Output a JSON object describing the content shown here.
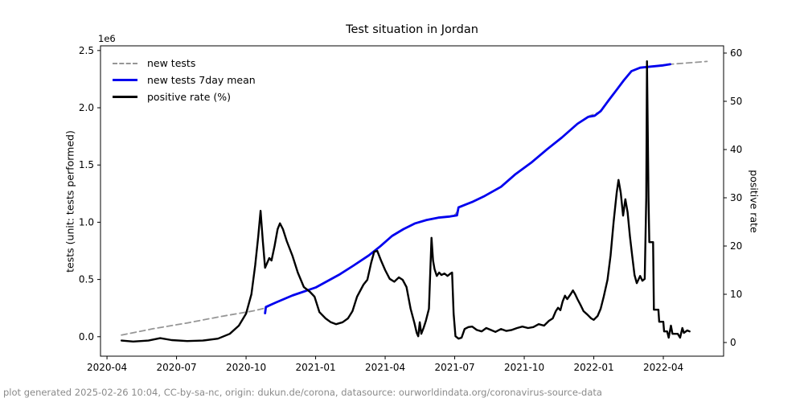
{
  "title": "Test situation in Jordan",
  "footer": "plot generated 2025-02-26 10:04, CC-by-sa-nc, origin: dukun.de/corona, datasource: ourworldindata.org/coronavirus-source-data",
  "colors": {
    "new_tests": "#969696",
    "new_tests_7day": "#0000ee",
    "positive_rate": "#000000",
    "frame": "#000000",
    "footer_text": "#8a8a8a"
  },
  "chart_data": {
    "type": "line",
    "title": "Test situation in Jordan",
    "xlabel": "",
    "ylabel_left": "tests (unit: tests performed)",
    "ylabel_right": "positive rate",
    "offset_label": "1e6",
    "grid": false,
    "legend_position": "upper left",
    "x_ticks": [
      {
        "label": "2020-04",
        "month": 0
      },
      {
        "label": "2020-07",
        "month": 3
      },
      {
        "label": "2020-10",
        "month": 6
      },
      {
        "label": "2021-01",
        "month": 9
      },
      {
        "label": "2021-04",
        "month": 12
      },
      {
        "label": "2021-07",
        "month": 15
      },
      {
        "label": "2021-10",
        "month": 18
      },
      {
        "label": "2022-01",
        "month": 21
      },
      {
        "label": "2022-04",
        "month": 24
      }
    ],
    "x_range_months": [
      -0.28,
      26.6
    ],
    "left_axis": {
      "ticks": [
        0.0,
        0.5,
        1.0,
        1.5,
        2.0,
        2.5
      ],
      "range": [
        -0.17,
        2.541
      ],
      "unit": "1e6 tests"
    },
    "right_axis": {
      "ticks": [
        0,
        10,
        20,
        30,
        40,
        50,
        60
      ],
      "range": [
        -2.83,
        61.5
      ],
      "unit": "%"
    },
    "series": [
      {
        "name": "new tests",
        "axis": "left",
        "style": "dashed",
        "color": "#969696",
        "width": 1.8,
        "points": [
          [
            "2020-04-20",
            0.015
          ],
          [
            "2020-06-01",
            0.07
          ],
          [
            "2020-07-15",
            0.12
          ],
          [
            "2020-09-01",
            0.18
          ],
          [
            "2020-10-10",
            0.225
          ],
          [
            "2020-10-26",
            0.25
          ],
          [
            "2020-11-10",
            0.3
          ],
          [
            "2020-12-01",
            0.36
          ],
          [
            "2021-01-01",
            0.43
          ],
          [
            "2021-02-01",
            0.54
          ],
          [
            "2021-02-20",
            0.62
          ],
          [
            "2021-03-10",
            0.71
          ],
          [
            "2021-03-25",
            0.79
          ],
          [
            "2021-04-10",
            0.88
          ],
          [
            "2021-04-25",
            0.94
          ],
          [
            "2021-05-10",
            0.99
          ],
          [
            "2021-05-25",
            1.02
          ],
          [
            "2021-06-10",
            1.04
          ],
          [
            "2021-06-25",
            1.05
          ],
          [
            "2021-07-02",
            1.07
          ],
          [
            "2021-07-08",
            1.13
          ],
          [
            "2021-07-25",
            1.18
          ],
          [
            "2021-08-10",
            1.23
          ],
          [
            "2021-09-01",
            1.31
          ],
          [
            "2021-09-20",
            1.42
          ],
          [
            "2021-10-10",
            1.52
          ],
          [
            "2021-11-01",
            1.64
          ],
          [
            "2021-11-20",
            1.74
          ],
          [
            "2021-12-10",
            1.86
          ],
          [
            "2021-12-26",
            1.93
          ],
          [
            "2022-01-08",
            1.96
          ],
          [
            "2022-01-20",
            2.06
          ],
          [
            "2022-02-01",
            2.16
          ],
          [
            "2022-02-10",
            2.24
          ],
          [
            "2022-02-20",
            2.32
          ],
          [
            "2022-03-01",
            2.35
          ],
          [
            "2022-03-15",
            2.36
          ],
          [
            "2022-04-01",
            2.375
          ],
          [
            "2022-04-20",
            2.385
          ],
          [
            "2022-05-28",
            2.405
          ]
        ]
      },
      {
        "name": "new tests 7day mean",
        "axis": "left",
        "style": "solid",
        "color": "#0000ee",
        "width": 2.8,
        "points": [
          [
            "2020-10-26",
            0.205
          ],
          [
            "2020-10-27",
            0.26
          ],
          [
            "2020-11-10",
            0.3
          ],
          [
            "2020-12-01",
            0.36
          ],
          [
            "2021-01-01",
            0.43
          ],
          [
            "2021-02-01",
            0.54
          ],
          [
            "2021-02-20",
            0.62
          ],
          [
            "2021-03-10",
            0.71
          ],
          [
            "2021-03-25",
            0.79
          ],
          [
            "2021-04-10",
            0.88
          ],
          [
            "2021-04-25",
            0.94
          ],
          [
            "2021-05-10",
            0.99
          ],
          [
            "2021-05-25",
            1.02
          ],
          [
            "2021-06-10",
            1.04
          ],
          [
            "2021-06-25",
            1.05
          ],
          [
            "2021-07-04",
            1.06
          ],
          [
            "2021-07-06",
            1.13
          ],
          [
            "2021-07-25",
            1.18
          ],
          [
            "2021-08-10",
            1.23
          ],
          [
            "2021-09-01",
            1.31
          ],
          [
            "2021-09-20",
            1.42
          ],
          [
            "2021-10-10",
            1.52
          ],
          [
            "2021-11-01",
            1.64
          ],
          [
            "2021-11-20",
            1.74
          ],
          [
            "2021-12-10",
            1.86
          ],
          [
            "2021-12-24",
            1.92
          ],
          [
            "2022-01-02",
            1.93
          ],
          [
            "2022-01-10",
            1.97
          ],
          [
            "2022-01-20",
            2.06
          ],
          [
            "2022-02-01",
            2.16
          ],
          [
            "2022-02-10",
            2.24
          ],
          [
            "2022-02-20",
            2.32
          ],
          [
            "2022-03-01",
            2.35
          ],
          [
            "2022-03-15",
            2.36
          ],
          [
            "2022-04-01",
            2.37
          ],
          [
            "2022-04-10",
            2.38
          ]
        ]
      },
      {
        "name": "positive rate (%)",
        "axis": "right",
        "style": "solid",
        "color": "#000000",
        "width": 2.4,
        "points": [
          [
            "2020-04-20",
            0.4
          ],
          [
            "2020-05-05",
            0.2
          ],
          [
            "2020-05-25",
            0.4
          ],
          [
            "2020-06-10",
            0.9
          ],
          [
            "2020-06-25",
            0.5
          ],
          [
            "2020-07-15",
            0.3
          ],
          [
            "2020-08-05",
            0.4
          ],
          [
            "2020-08-25",
            0.8
          ],
          [
            "2020-09-10",
            1.8
          ],
          [
            "2020-09-22",
            3.5
          ],
          [
            "2020-10-01",
            6
          ],
          [
            "2020-10-08",
            10
          ],
          [
            "2020-10-13",
            16
          ],
          [
            "2020-10-17",
            22
          ],
          [
            "2020-10-20",
            27.3
          ],
          [
            "2020-10-23",
            21
          ],
          [
            "2020-10-26",
            15.5
          ],
          [
            "2020-11-01",
            17.5
          ],
          [
            "2020-11-04",
            17
          ],
          [
            "2020-11-08",
            20
          ],
          [
            "2020-11-12",
            23.5
          ],
          [
            "2020-11-15",
            24.7
          ],
          [
            "2020-11-19",
            23.5
          ],
          [
            "2020-11-24",
            21
          ],
          [
            "2020-12-01",
            18
          ],
          [
            "2020-12-08",
            14.5
          ],
          [
            "2020-12-16",
            11.5
          ],
          [
            "2020-12-24",
            10.5
          ],
          [
            "2020-12-30",
            9.5
          ],
          [
            "2021-01-06",
            6.3
          ],
          [
            "2021-01-14",
            5
          ],
          [
            "2021-01-21",
            4.2
          ],
          [
            "2021-01-28",
            3.8
          ],
          [
            "2021-02-06",
            4.2
          ],
          [
            "2021-02-13",
            5
          ],
          [
            "2021-02-19",
            6.5
          ],
          [
            "2021-02-25",
            9.5
          ],
          [
            "2021-03-03",
            12
          ],
          [
            "2021-03-08",
            13
          ],
          [
            "2021-03-13",
            16.5
          ],
          [
            "2021-03-17",
            18.8
          ],
          [
            "2021-03-21",
            19
          ],
          [
            "2021-03-26",
            17
          ],
          [
            "2021-04-01",
            15
          ],
          [
            "2021-04-07",
            13.2
          ],
          [
            "2021-04-13",
            12.6
          ],
          [
            "2021-04-19",
            13.5
          ],
          [
            "2021-04-24",
            13
          ],
          [
            "2021-04-29",
            11.5
          ],
          [
            "2021-05-04",
            7
          ],
          [
            "2021-05-09",
            4
          ],
          [
            "2021-05-12",
            2
          ],
          [
            "2021-05-14",
            1.3
          ],
          [
            "2021-05-16",
            4.2
          ],
          [
            "2021-05-18",
            1.8
          ],
          [
            "2021-05-21",
            3
          ],
          [
            "2021-05-24",
            4.5
          ],
          [
            "2021-05-28",
            7
          ],
          [
            "2021-06-01",
            21.7
          ],
          [
            "2021-06-03",
            17
          ],
          [
            "2021-06-05",
            15.2
          ],
          [
            "2021-06-08",
            13.8
          ],
          [
            "2021-06-11",
            14.5
          ],
          [
            "2021-06-14",
            14
          ],
          [
            "2021-06-18",
            14.3
          ],
          [
            "2021-06-22",
            13.8
          ],
          [
            "2021-06-26",
            14.3
          ],
          [
            "2021-06-28",
            14.5
          ],
          [
            "2021-06-30",
            6
          ],
          [
            "2021-07-02",
            1.3
          ],
          [
            "2021-07-06",
            0.8
          ],
          [
            "2021-07-10",
            1
          ],
          [
            "2021-07-14",
            2.8
          ],
          [
            "2021-07-19",
            3.2
          ],
          [
            "2021-07-24",
            3.3
          ],
          [
            "2021-07-30",
            2.6
          ],
          [
            "2021-08-06",
            2.3
          ],
          [
            "2021-08-12",
            3
          ],
          [
            "2021-08-18",
            2.6
          ],
          [
            "2021-08-24",
            2.2
          ],
          [
            "2021-09-01",
            2.8
          ],
          [
            "2021-09-08",
            2.4
          ],
          [
            "2021-09-15",
            2.6
          ],
          [
            "2021-09-22",
            3
          ],
          [
            "2021-09-29",
            3.3
          ],
          [
            "2021-10-06",
            3
          ],
          [
            "2021-10-13",
            3.2
          ],
          [
            "2021-10-20",
            3.8
          ],
          [
            "2021-10-27",
            3.5
          ],
          [
            "2021-11-03",
            4.5
          ],
          [
            "2021-11-08",
            5
          ],
          [
            "2021-11-12",
            6.5
          ],
          [
            "2021-11-15",
            7.2
          ],
          [
            "2021-11-18",
            6.7
          ],
          [
            "2021-11-21",
            8.5
          ],
          [
            "2021-11-24",
            9.7
          ],
          [
            "2021-11-27",
            9
          ],
          [
            "2021-12-01",
            10
          ],
          [
            "2021-12-04",
            10.8
          ],
          [
            "2021-12-07",
            10
          ],
          [
            "2021-12-10",
            9
          ],
          [
            "2021-12-14",
            7.8
          ],
          [
            "2021-12-18",
            6.5
          ],
          [
            "2021-12-23",
            5.8
          ],
          [
            "2021-12-28",
            5
          ],
          [
            "2022-01-01",
            4.7
          ],
          [
            "2022-01-06",
            5.5
          ],
          [
            "2022-01-10",
            7
          ],
          [
            "2022-01-14",
            9.5
          ],
          [
            "2022-01-19",
            13
          ],
          [
            "2022-01-23",
            18
          ],
          [
            "2022-01-27",
            25
          ],
          [
            "2022-01-31",
            31
          ],
          [
            "2022-02-03",
            33.7
          ],
          [
            "2022-02-06",
            31
          ],
          [
            "2022-02-09",
            26.3
          ],
          [
            "2022-02-12",
            29.7
          ],
          [
            "2022-02-15",
            27
          ],
          [
            "2022-02-18",
            22
          ],
          [
            "2022-02-21",
            18
          ],
          [
            "2022-02-24",
            14
          ],
          [
            "2022-02-27",
            12.3
          ],
          [
            "2022-03-01",
            13.8
          ],
          [
            "2022-03-04",
            12.8
          ],
          [
            "2022-03-07",
            13.2
          ],
          [
            "2022-03-09",
            30
          ],
          [
            "2022-03-10",
            58.3
          ],
          [
            "2022-03-12",
            30
          ],
          [
            "2022-03-13",
            20.8
          ],
          [
            "2022-03-18",
            20.8
          ],
          [
            "2022-03-19",
            6.8
          ],
          [
            "2022-03-25",
            6.8
          ],
          [
            "2022-03-26",
            4.3
          ],
          [
            "2022-04-01",
            4.3
          ],
          [
            "2022-04-02",
            2.3
          ],
          [
            "2022-04-06",
            2.3
          ],
          [
            "2022-04-08",
            1.0
          ],
          [
            "2022-04-11",
            3.5
          ],
          [
            "2022-04-13",
            1.8
          ],
          [
            "2022-04-20",
            1.8
          ],
          [
            "2022-04-23",
            1.0
          ],
          [
            "2022-04-26",
            3.0
          ],
          [
            "2022-04-28",
            2.0
          ],
          [
            "2022-05-02",
            2.5
          ],
          [
            "2022-05-05",
            2.3
          ]
        ]
      }
    ]
  }
}
